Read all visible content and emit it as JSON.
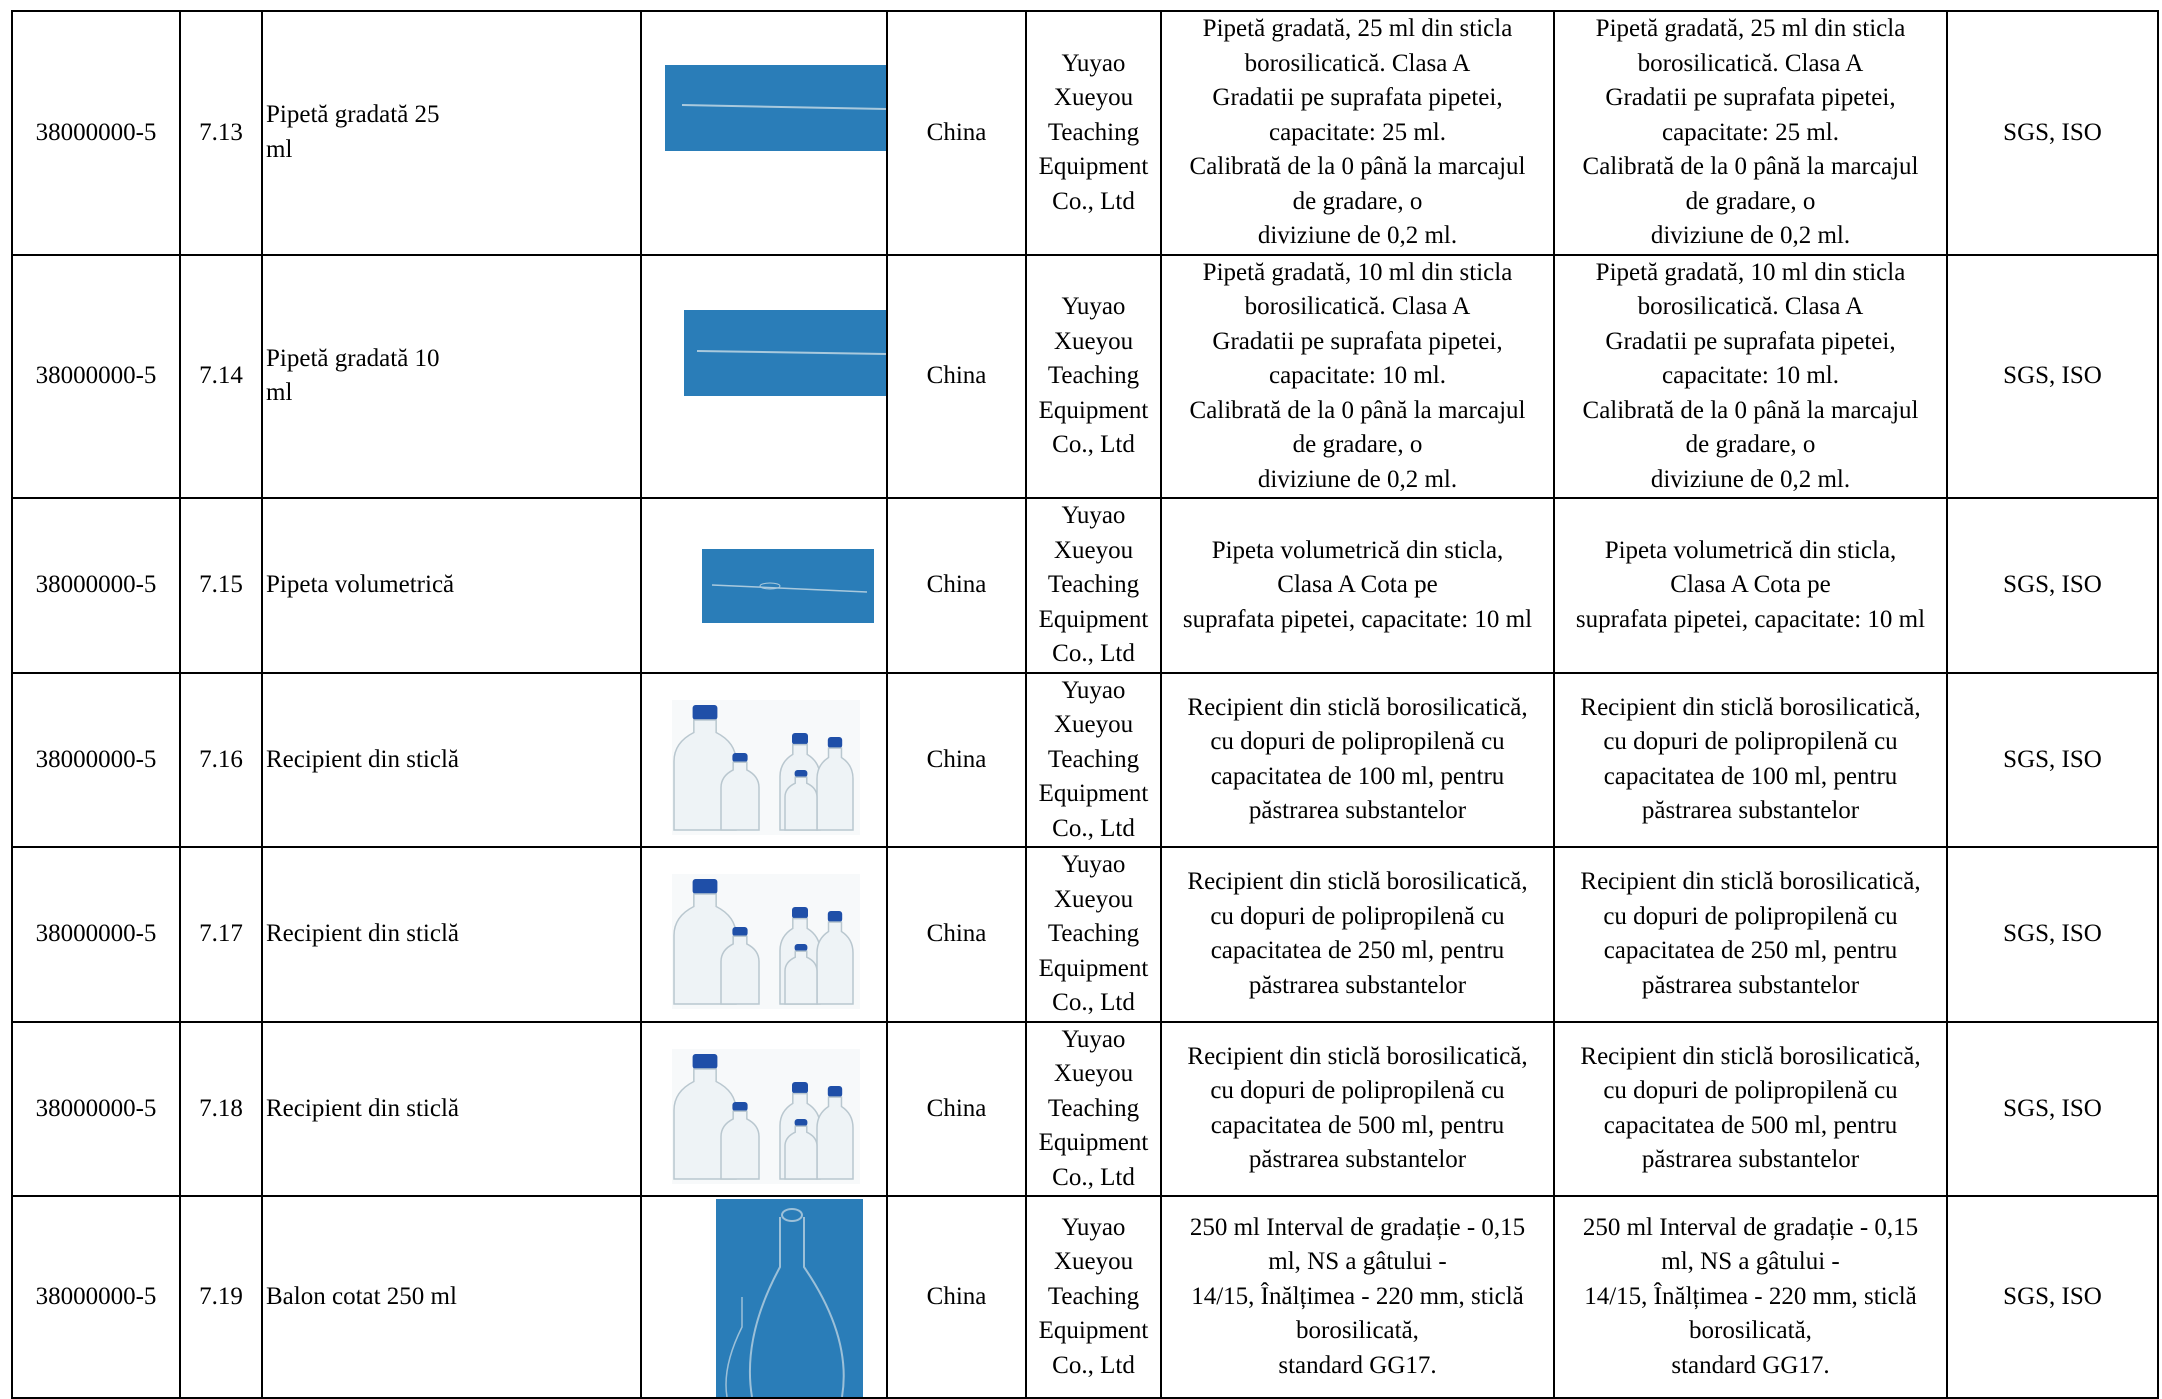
{
  "table": {
    "rows": [
      {
        "cells": [
          "38000000-5",
          "7.13",
          "Pipetă gradată 25 ml",
          "China",
          "Yuyao\nXueyou\nTeaching\nEquipment\nCo., Ltd",
          "Pipetă gradată, 25 ml din sticla\nborosilicatică. Clasa A\nGradatii pe suprafata pipetei,\ncapacitate: 25 ml.\nCalibrată de la 0 până la marcajul\nde gradare, o\ndiviziune de 0,2 ml.",
          "Pipetă gradată, 25 ml din sticla\nborosilicatică. Clasa A\nGradatii pe suprafata pipetei,\ncapacitate: 25 ml.\nCalibrată de la 0 până la marcajul\nde gradare, o\ndiviziune de 0,2 ml.",
          "SGS, ISO"
        ]
      },
      {
        "cells": [
          "38000000-5",
          "7.14",
          "Pipetă gradată 10 ml",
          "China",
          "Yuyao\nXueyou\nTeaching\nEquipment\nCo., Ltd",
          "Pipetă gradată, 10 ml din sticla\nborosilicatică. Clasa A\nGradatii pe suprafata pipetei,\ncapacitate: 10 ml.\nCalibrată de la 0 până la marcajul\nde gradare, o\ndiviziune de 0,2 ml.",
          "Pipetă gradată, 10 ml din sticla\nborosilicatică. Clasa A\nGradatii pe suprafata pipetei,\ncapacitate: 10 ml.\nCalibrată de la 0 până la marcajul\nde gradare, o\ndiviziune de 0,2 ml.",
          "SGS, ISO"
        ]
      },
      {
        "cells": [
          "38000000-5",
          "7.15",
          "Pipeta volumetrică",
          "China",
          "Yuyao\nXueyou\nTeaching\nEquipment\nCo., Ltd",
          "Pipeta volumetrică din sticla,\nClasa A Cota pe\nsuprafata pipetei, capacitate: 10 ml",
          "Pipeta volumetrică din sticla,\nClasa A Cota pe\nsuprafata pipetei, capacitate: 10 ml",
          "SGS, ISO"
        ]
      },
      {
        "cells": [
          "38000000-5",
          "7.16",
          "Recipient din sticlă",
          "China",
          "Yuyao\nXueyou\nTeaching\nEquipment\nCo., Ltd",
          "Recipient din sticlă borosilicatică,\ncu dopuri de polipropilenă cu\ncapacitatea de 100 ml, pentru\npăstrarea substantelor",
          "Recipient din sticlă borosilicatică,\ncu dopuri de polipropilenă cu\ncapacitatea de 100 ml, pentru\npăstrarea substantelor",
          "SGS, ISO"
        ]
      },
      {
        "cells": [
          "38000000-5",
          "7.17",
          "Recipient din sticlă",
          "China",
          "Yuyao\nXueyou\nTeaching\nEquipment\nCo., Ltd",
          "Recipient din sticlă borosilicatică,\ncu dopuri de polipropilenă cu\ncapacitatea de 250 ml, pentru\npăstrarea substantelor",
          "Recipient din sticlă borosilicatică,\ncu dopuri de polipropilenă cu\ncapacitatea de 250 ml, pentru\npăstrarea substantelor",
          "SGS, ISO"
        ]
      },
      {
        "cells": [
          "38000000-5",
          "7.18",
          "Recipient din sticlă",
          "China",
          "Yuyao\nXueyou\nTeaching\nEquipment\nCo., Ltd",
          "Recipient din sticlă borosilicatică,\ncu dopuri de polipropilenă cu\ncapacitatea de 500 ml, pentru\npăstrarea substantelor",
          "Recipient din sticlă borosilicatică,\ncu dopuri de polipropilenă cu\ncapacitatea de 500 ml, pentru\npăstrarea substantelor",
          "SGS, ISO"
        ]
      },
      {
        "cells": [
          "38000000-5",
          "7.19",
          "Balon cotat 250 ml",
          "China",
          "Yuyao\nXueyou\nTeaching\nEquipment\nCo., Ltd",
          "250 ml Interval de gradație - 0,15\nml, NS a gâtului -\n14/15, Înălțimea - 220 mm, sticlă\nborosilicată,\nstandard GG17.",
          "250 ml Interval de gradație - 0,15\nml, NS a gâtului -\n14/15, Înălțimea - 220 mm, sticlă\nborosilicată,\nstandard GG17.",
          "SGS, ISO"
        ]
      }
    ]
  }
}
